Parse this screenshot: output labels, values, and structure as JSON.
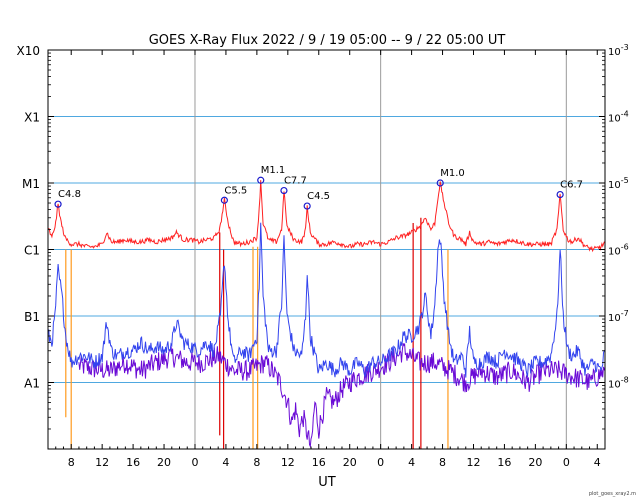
{
  "chart_data": {
    "type": "line",
    "title": "GOES X-Ray Flux   2022 /  9 / 19   05:00 --  9 / 22   05:00   UT",
    "xlabel": "UT",
    "footer": "plot_goes_xray2.m",
    "x_range_hours": [
      0,
      72
    ],
    "y_scale": "log",
    "ylim_w_per_m2": [
      1e-09,
      0.001
    ],
    "grid": true,
    "colors": {
      "long": "#ff2222",
      "short": "#3344ee",
      "short_alt": "#6a0ad6",
      "grid": "#4fa8e0",
      "day": "#9a9a9a",
      "event_red": "#dd0000",
      "event_orange": "#ff9a1e",
      "marker": "#1a1acc"
    },
    "x_tick_labels": [
      {
        "t": 3,
        "label": "8"
      },
      {
        "t": 7,
        "label": "12"
      },
      {
        "t": 11,
        "label": "16"
      },
      {
        "t": 15,
        "label": "20"
      },
      {
        "t": 19,
        "label": "0"
      },
      {
        "t": 23,
        "label": "4"
      },
      {
        "t": 27,
        "label": "8"
      },
      {
        "t": 31,
        "label": "12"
      },
      {
        "t": 35,
        "label": "16"
      },
      {
        "t": 39,
        "label": "20"
      },
      {
        "t": 43,
        "label": "0"
      },
      {
        "t": 47,
        "label": "4"
      },
      {
        "t": 51,
        "label": "8"
      },
      {
        "t": 55,
        "label": "12"
      },
      {
        "t": 59,
        "label": "16"
      },
      {
        "t": 63,
        "label": "20"
      },
      {
        "t": 67,
        "label": "0"
      },
      {
        "t": 71,
        "label": "4"
      }
    ],
    "day_boundaries_hours": [
      19,
      43,
      67
    ],
    "y_left_labels": [
      {
        "v": 0.001,
        "label": "X10"
      },
      {
        "v": 0.0001,
        "label": "X1"
      },
      {
        "v": 1e-05,
        "label": "M1"
      },
      {
        "v": 1e-06,
        "label": "C1"
      },
      {
        "v": 1e-07,
        "label": "B1"
      },
      {
        "v": 1e-08,
        "label": "A1"
      }
    ],
    "y_right_labels": [
      {
        "v": 0.001,
        "base": "10",
        "exp": "-3"
      },
      {
        "v": 0.0001,
        "base": "10",
        "exp": "-4"
      },
      {
        "v": 1e-05,
        "base": "10",
        "exp": "-5"
      },
      {
        "v": 1e-06,
        "base": "10",
        "exp": "-6"
      },
      {
        "v": 1e-07,
        "base": "10",
        "exp": "-7"
      },
      {
        "v": 1e-08,
        "base": "10",
        "exp": "-8"
      }
    ],
    "flares": [
      {
        "t": 1.3,
        "peak": 4.8e-06,
        "label": "C4.8"
      },
      {
        "t": 22.8,
        "peak": 5.5e-06,
        "label": "C5.5"
      },
      {
        "t": 27.5,
        "peak": 1.1e-05,
        "label": "M1.1"
      },
      {
        "t": 30.5,
        "peak": 7.7e-06,
        "label": "C7.7"
      },
      {
        "t": 33.5,
        "peak": 4.5e-06,
        "label": "C4.5"
      },
      {
        "t": 50.7,
        "peak": 1e-05,
        "label": "M1.0"
      },
      {
        "t": 66.2,
        "peak": 6.7e-06,
        "label": "C6.7"
      }
    ],
    "series": [
      {
        "name": "long",
        "points": [
          [
            0.1,
            2e-06
          ],
          [
            0.5,
            1.5e-06
          ],
          [
            1.0,
            2.5e-06
          ],
          [
            1.3,
            4.8e-06
          ],
          [
            1.7,
            2.5e-06
          ],
          [
            2.2,
            1.5e-06
          ],
          [
            3.0,
            1.2e-06
          ],
          [
            4.0,
            1.2e-06
          ],
          [
            5.0,
            1.1e-06
          ],
          [
            6.0,
            1.1e-06
          ],
          [
            7.0,
            1.2e-06
          ],
          [
            7.6,
            1.8e-06
          ],
          [
            8.2,
            1.3e-06
          ],
          [
            9.0,
            1.3e-06
          ],
          [
            10.0,
            1.4e-06
          ],
          [
            11.0,
            1.3e-06
          ],
          [
            12.0,
            1.3e-06
          ],
          [
            13.0,
            1.4e-06
          ],
          [
            14.0,
            1.3e-06
          ],
          [
            15.0,
            1.4e-06
          ],
          [
            16.0,
            1.5e-06
          ],
          [
            16.6,
            1.8e-06
          ],
          [
            17.5,
            1.4e-06
          ],
          [
            18.5,
            1.4e-06
          ],
          [
            19.5,
            1.3e-06
          ],
          [
            20.5,
            1.4e-06
          ],
          [
            21.5,
            1.5e-06
          ],
          [
            22.2,
            2e-06
          ],
          [
            22.8,
            5.5e-06
          ],
          [
            23.3,
            2.5e-06
          ],
          [
            24.0,
            1.3e-06
          ],
          [
            25.0,
            1.2e-06
          ],
          [
            26.0,
            1.3e-06
          ],
          [
            27.0,
            1.5e-06
          ],
          [
            27.3,
            4e-06
          ],
          [
            27.5,
            1.1e-05
          ],
          [
            27.8,
            2.5e-06
          ],
          [
            28.5,
            1.4e-06
          ],
          [
            29.5,
            1.3e-06
          ],
          [
            30.2,
            2e-06
          ],
          [
            30.5,
            7.7e-06
          ],
          [
            30.9,
            2.2e-06
          ],
          [
            31.8,
            1.4e-06
          ],
          [
            32.8,
            1.3e-06
          ],
          [
            33.3,
            2e-06
          ],
          [
            33.5,
            4.5e-06
          ],
          [
            33.9,
            1.8e-06
          ],
          [
            35.0,
            1.2e-06
          ],
          [
            36.0,
            1.2e-06
          ],
          [
            37.0,
            1.3e-06
          ],
          [
            38.0,
            1.2e-06
          ],
          [
            39.0,
            1.1e-06
          ],
          [
            40.0,
            1.2e-06
          ],
          [
            41.0,
            1.2e-06
          ],
          [
            42.0,
            1.3e-06
          ],
          [
            43.0,
            1.2e-06
          ],
          [
            44.0,
            1.3e-06
          ],
          [
            45.0,
            1.5e-06
          ],
          [
            46.0,
            1.6e-06
          ],
          [
            47.0,
            1.8e-06
          ],
          [
            48.0,
            2.2e-06
          ],
          [
            48.8,
            3e-06
          ],
          [
            49.5,
            2e-06
          ],
          [
            50.0,
            2.5e-06
          ],
          [
            50.4,
            6e-06
          ],
          [
            50.7,
            1e-05
          ],
          [
            51.2,
            5e-06
          ],
          [
            51.8,
            2.5e-06
          ],
          [
            52.5,
            1.6e-06
          ],
          [
            53.5,
            1.4e-06
          ],
          [
            54.0,
            1.2e-06
          ],
          [
            54.5,
            1.8e-06
          ],
          [
            55.0,
            1.3e-06
          ],
          [
            56.0,
            1.2e-06
          ],
          [
            57.0,
            1.3e-06
          ],
          [
            58.0,
            1.2e-06
          ],
          [
            59.0,
            1.3e-06
          ],
          [
            60.0,
            1.4e-06
          ],
          [
            61.0,
            1.3e-06
          ],
          [
            62.0,
            1.2e-06
          ],
          [
            63.0,
            1.2e-06
          ],
          [
            64.0,
            1.2e-06
          ],
          [
            65.0,
            1.2e-06
          ],
          [
            65.8,
            2e-06
          ],
          [
            66.2,
            6.7e-06
          ],
          [
            66.6,
            2e-06
          ],
          [
            67.2,
            1.4e-06
          ],
          [
            67.8,
            1.3e-06
          ],
          [
            68.5,
            1.5e-06
          ],
          [
            69.5,
            1.1e-06
          ],
          [
            70.5,
            1e-06
          ],
          [
            71.5,
            1.1e-06
          ],
          [
            72.0,
            1.3e-06
          ]
        ]
      },
      {
        "name": "short",
        "points": [
          [
            0.1,
            5e-08
          ],
          [
            0.5,
            4e-08
          ],
          [
            0.9,
            1e-07
          ],
          [
            1.3,
            5e-07
          ],
          [
            1.8,
            2e-07
          ],
          [
            2.3,
            5e-08
          ],
          [
            3.0,
            2e-08
          ],
          [
            4.0,
            2.5e-08
          ],
          [
            5.0,
            2.5e-08
          ],
          [
            6.0,
            2e-08
          ],
          [
            7.0,
            2.5e-08
          ],
          [
            7.6,
            8e-08
          ],
          [
            8.2,
            3e-08
          ],
          [
            9.0,
            2.5e-08
          ],
          [
            10.0,
            3e-08
          ],
          [
            11.0,
            3e-08
          ],
          [
            12.0,
            4e-08
          ],
          [
            13.0,
            3e-08
          ],
          [
            14.0,
            3.5e-08
          ],
          [
            15.0,
            3e-08
          ],
          [
            16.0,
            4e-08
          ],
          [
            16.6,
            8e-08
          ],
          [
            17.5,
            4e-08
          ],
          [
            18.5,
            3.5e-08
          ],
          [
            19.5,
            3e-08
          ],
          [
            20.5,
            4e-08
          ],
          [
            21.5,
            3e-08
          ],
          [
            22.3,
            1e-07
          ],
          [
            22.8,
            7e-07
          ],
          [
            23.3,
            8e-08
          ],
          [
            24.0,
            2e-08
          ],
          [
            25.0,
            3e-08
          ],
          [
            26.0,
            2.5e-08
          ],
          [
            27.0,
            5e-08
          ],
          [
            27.3,
            3e-07
          ],
          [
            27.5,
            2.5e-06
          ],
          [
            27.8,
            2e-07
          ],
          [
            28.5,
            3e-08
          ],
          [
            29.5,
            3e-08
          ],
          [
            30.2,
            1.5e-07
          ],
          [
            30.5,
            1.5e-06
          ],
          [
            30.9,
            1e-07
          ],
          [
            31.8,
            3e-08
          ],
          [
            32.8,
            2.5e-08
          ],
          [
            33.3,
            1e-07
          ],
          [
            33.5,
            5e-07
          ],
          [
            33.9,
            5e-08
          ],
          [
            35.0,
            1.5e-08
          ],
          [
            36.0,
            2e-08
          ],
          [
            37.0,
            1.5e-08
          ],
          [
            38.0,
            2e-08
          ],
          [
            39.0,
            1.5e-08
          ],
          [
            40.0,
            2e-08
          ],
          [
            41.0,
            1.5e-08
          ],
          [
            42.0,
            2e-08
          ],
          [
            43.0,
            2e-08
          ],
          [
            44.0,
            2.5e-08
          ],
          [
            45.0,
            3e-08
          ],
          [
            46.0,
            5e-08
          ],
          [
            47.0,
            5e-08
          ],
          [
            48.0,
            7e-08
          ],
          [
            48.8,
            2e-07
          ],
          [
            49.5,
            5e-08
          ],
          [
            50.0,
            1.5e-07
          ],
          [
            50.4,
            1e-06
          ],
          [
            50.7,
            1.5e-06
          ],
          [
            51.2,
            2e-07
          ],
          [
            51.8,
            5e-08
          ],
          [
            52.5,
            2e-08
          ],
          [
            53.5,
            2.5e-08
          ],
          [
            54.0,
            1.5e-08
          ],
          [
            54.5,
            6e-08
          ],
          [
            55.0,
            2e-08
          ],
          [
            56.0,
            2e-08
          ],
          [
            57.0,
            2.5e-08
          ],
          [
            58.0,
            2e-08
          ],
          [
            59.0,
            3e-08
          ],
          [
            60.0,
            2.5e-08
          ],
          [
            61.0,
            2e-08
          ],
          [
            62.0,
            1.5e-08
          ],
          [
            63.0,
            2e-08
          ],
          [
            64.0,
            2e-08
          ],
          [
            65.0,
            2.5e-08
          ],
          [
            65.8,
            1e-07
          ],
          [
            66.2,
            1e-06
          ],
          [
            66.6,
            1e-07
          ],
          [
            67.2,
            3e-08
          ],
          [
            67.8,
            2.5e-08
          ],
          [
            68.5,
            3e-08
          ],
          [
            69.5,
            1.5e-08
          ],
          [
            70.5,
            2e-08
          ],
          [
            71.5,
            1.5e-08
          ],
          [
            72.0,
            3e-08
          ]
        ]
      },
      {
        "name": "short_alt",
        "points": [
          [
            4.0,
            1.8e-08
          ],
          [
            6.0,
            1.6e-08
          ],
          [
            8.0,
            1.5e-08
          ],
          [
            10.0,
            2e-08
          ],
          [
            12.0,
            1.5e-08
          ],
          [
            14.0,
            2e-08
          ],
          [
            16.0,
            2.5e-08
          ],
          [
            18.0,
            2e-08
          ],
          [
            20.0,
            2e-08
          ],
          [
            22.0,
            2.5e-08
          ],
          [
            24.0,
            1.5e-08
          ],
          [
            26.0,
            1.5e-08
          ],
          [
            28.0,
            2e-08
          ],
          [
            29.0,
            1.5e-08
          ],
          [
            30.0,
            1e-08
          ],
          [
            31.0,
            5e-09
          ],
          [
            31.5,
            2.5e-09
          ],
          [
            32.0,
            4e-09
          ],
          [
            32.5,
            2e-09
          ],
          [
            33.0,
            3e-09
          ],
          [
            34.0,
            1e-09
          ],
          [
            34.5,
            5e-09
          ],
          [
            35.0,
            2e-09
          ],
          [
            36.0,
            6e-09
          ],
          [
            37.0,
            5e-09
          ],
          [
            38.0,
            8e-09
          ],
          [
            39.0,
            1e-08
          ],
          [
            40.0,
            1.2e-08
          ],
          [
            42.0,
            1.5e-08
          ],
          [
            44.0,
            2e-08
          ],
          [
            46.0,
            3e-08
          ],
          [
            48.0,
            2e-08
          ],
          [
            50.0,
            2e-08
          ],
          [
            52.0,
            1.5e-08
          ],
          [
            54.0,
            1e-08
          ],
          [
            56.0,
            1.5e-08
          ],
          [
            58.0,
            1.2e-08
          ],
          [
            60.0,
            1.5e-08
          ],
          [
            62.0,
            1e-08
          ],
          [
            64.0,
            1.5e-08
          ],
          [
            66.0,
            1.5e-08
          ],
          [
            68.0,
            1.2e-08
          ],
          [
            70.0,
            1e-08
          ],
          [
            72.0,
            1.5e-08
          ]
        ]
      }
    ],
    "event_lines": [
      {
        "t": 2.3,
        "top": 1e-06,
        "bottom": 3e-09,
        "color": "orange"
      },
      {
        "t": 3.0,
        "top": 1e-06,
        "bottom": 1e-09,
        "color": "orange"
      },
      {
        "t": 22.2,
        "top": 1.8e-06,
        "bottom": 1.6e-09,
        "color": "red"
      },
      {
        "t": 22.7,
        "top": 1e-06,
        "bottom": 1e-09,
        "color": "red"
      },
      {
        "t": 26.5,
        "top": 1.1e-06,
        "bottom": 1e-09,
        "color": "orange"
      },
      {
        "t": 27.1,
        "top": 1.1e-06,
        "bottom": 1e-09,
        "color": "orange"
      },
      {
        "t": 47.2,
        "top": 2.5e-06,
        "bottom": 1e-09,
        "color": "red"
      },
      {
        "t": 48.2,
        "top": 3e-06,
        "bottom": 1e-09,
        "color": "red"
      },
      {
        "t": 51.7,
        "top": 1e-06,
        "bottom": 1e-09,
        "color": "orange"
      }
    ]
  }
}
